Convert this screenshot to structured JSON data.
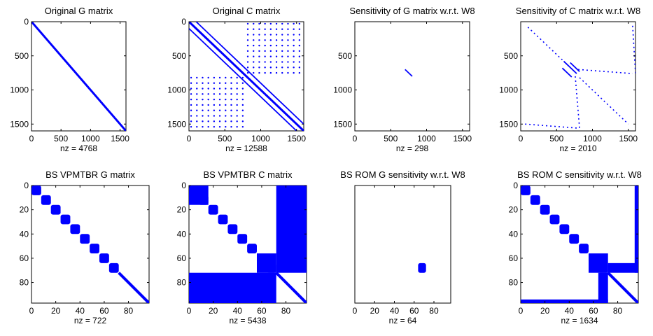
{
  "figure": {
    "mark_color": "#0000ff"
  },
  "chart_data": [
    {
      "type": "scatter",
      "subtype": "sparsity-pattern",
      "title": "Original G matrix",
      "xlabel": "nz = 4768",
      "xlim": [
        0,
        1600
      ],
      "ylim": [
        1600,
        0
      ],
      "y_reversed": true,
      "xticks": [
        0,
        500,
        1000,
        1500
      ],
      "yticks": [
        0,
        500,
        1000,
        1500
      ],
      "segments": [
        {
          "from": [
            0,
            0
          ],
          "to": [
            1600,
            1600
          ],
          "weight": "heavy"
        }
      ],
      "points": []
    },
    {
      "type": "scatter",
      "subtype": "sparsity-pattern",
      "title": "Original C matrix",
      "xlabel": "nz = 12588",
      "xlim": [
        0,
        1600
      ],
      "ylim": [
        1600,
        0
      ],
      "y_reversed": true,
      "xticks": [
        0,
        500,
        1000,
        1500
      ],
      "yticks": [
        0,
        500,
        1000,
        1500
      ],
      "segments": [
        {
          "from": [
            0,
            0
          ],
          "to": [
            1600,
            1600
          ],
          "weight": "heavy"
        },
        {
          "from": [
            100,
            0
          ],
          "to": [
            1600,
            1500
          ],
          "weight": "medium"
        },
        {
          "from": [
            0,
            100
          ],
          "to": [
            1500,
            1600
          ],
          "weight": "medium"
        }
      ],
      "point_grids": [
        {
          "x": [
            820,
            900,
            980,
            1060,
            1140,
            1220,
            1300,
            1380,
            1460,
            1540
          ],
          "y": [
            30,
            110,
            190,
            270,
            350,
            430,
            510,
            590,
            670,
            750
          ]
        },
        {
          "x": [
            30,
            110,
            190,
            270,
            350,
            430,
            510,
            590,
            670,
            750
          ],
          "y": [
            820,
            900,
            980,
            1060,
            1140,
            1220,
            1300,
            1380,
            1460,
            1540
          ]
        }
      ],
      "points": []
    },
    {
      "type": "scatter",
      "subtype": "sparsity-pattern",
      "title": "Sensitivity of G matrix w.r.t. W8",
      "xlabel": "nz = 298",
      "xlim": [
        0,
        1600
      ],
      "ylim": [
        1600,
        0
      ],
      "y_reversed": true,
      "xticks": [
        0,
        500,
        1000,
        1500
      ],
      "yticks": [
        500,
        1000,
        1500
      ],
      "segments": [
        {
          "from": [
            700,
            700
          ],
          "to": [
            800,
            800
          ],
          "weight": "medium"
        }
      ],
      "points": []
    },
    {
      "type": "scatter",
      "subtype": "sparsity-pattern",
      "title": "Sensitivity of C matrix w.r.t. W8",
      "xlabel": "nz = 2010",
      "xlim": [
        0,
        1600
      ],
      "ylim": [
        1600,
        0
      ],
      "y_reversed": true,
      "xticks": [
        0,
        500,
        1000,
        1500
      ],
      "yticks": [
        500,
        1000,
        1500
      ],
      "segments": [
        {
          "from": [
            600,
            580
          ],
          "to": [
            780,
            760
          ],
          "weight": "medium"
        },
        {
          "from": [
            690,
            600
          ],
          "to": [
            820,
            730
          ],
          "weight": "medium"
        },
        {
          "from": [
            580,
            680
          ],
          "to": [
            710,
            810
          ],
          "weight": "medium"
        },
        {
          "from": [
            100,
            80
          ],
          "to": [
            580,
            560
          ],
          "weight": "dotted"
        },
        {
          "from": [
            820,
            820
          ],
          "to": [
            1500,
            1500
          ],
          "weight": "dotted"
        },
        {
          "from": [
            800,
            700
          ],
          "to": [
            1560,
            760
          ],
          "weight": "dotted"
        },
        {
          "from": [
            760,
            800
          ],
          "to": [
            820,
            1560
          ],
          "weight": "dotted"
        },
        {
          "from": [
            60,
            1500
          ],
          "to": [
            800,
            1560
          ],
          "weight": "dotted"
        },
        {
          "from": [
            1560,
            60
          ],
          "to": [
            1600,
            760
          ],
          "weight": "dotted"
        }
      ],
      "points": []
    },
    {
      "type": "scatter",
      "subtype": "sparsity-pattern",
      "title": "BS VPMTBR G matrix",
      "xlabel": "nz = 722",
      "xlim": [
        0,
        97
      ],
      "ylim": [
        97,
        0
      ],
      "y_reversed": true,
      "xticks": [
        0,
        20,
        40,
        60,
        80
      ],
      "yticks": [
        0,
        20,
        40,
        60,
        80
      ],
      "blocks": [
        [
          0,
          8
        ],
        [
          8,
          16
        ],
        [
          16,
          24
        ],
        [
          24,
          32
        ],
        [
          32,
          40
        ],
        [
          40,
          48
        ],
        [
          48,
          56
        ],
        [
          56,
          64
        ],
        [
          64,
          72
        ]
      ],
      "segments": [
        {
          "from": [
            72,
            72
          ],
          "to": [
            97,
            97
          ],
          "weight": "band"
        }
      ],
      "points": []
    },
    {
      "type": "scatter",
      "subtype": "sparsity-pattern",
      "title": "BS VPMTBR C matrix",
      "xlabel": "nz = 5438",
      "xlim": [
        0,
        97
      ],
      "ylim": [
        97,
        0
      ],
      "y_reversed": true,
      "xticks": [
        0,
        20,
        40,
        60,
        80
      ],
      "yticks": [
        0,
        20,
        40,
        60,
        80
      ],
      "blocks": [
        [
          0,
          8
        ],
        [
          8,
          16
        ],
        [
          16,
          24
        ],
        [
          24,
          32
        ],
        [
          32,
          40
        ],
        [
          40,
          48
        ],
        [
          48,
          56
        ],
        [
          56,
          64
        ],
        [
          64,
          72
        ]
      ],
      "dense_regions": [
        {
          "x": [
            0,
            16
          ],
          "y": [
            0,
            16
          ]
        },
        {
          "x": [
            72,
            97
          ],
          "y": [
            0,
            72
          ]
        },
        {
          "x": [
            0,
            72
          ],
          "y": [
            72,
            97
          ]
        },
        {
          "x": [
            56,
            72
          ],
          "y": [
            56,
            72
          ]
        }
      ],
      "segments": [
        {
          "from": [
            72,
            72
          ],
          "to": [
            97,
            97
          ],
          "weight": "band"
        }
      ],
      "points": []
    },
    {
      "type": "scatter",
      "subtype": "sparsity-pattern",
      "title": "BS ROM G sensitivity w.r.t. W8",
      "xlabel": "nz = 64",
      "xlim": [
        0,
        97
      ],
      "ylim": [
        97,
        0
      ],
      "y_reversed": true,
      "xticks": [
        0,
        20,
        40,
        60,
        80
      ],
      "yticks": [],
      "blocks": [
        [
          64,
          72
        ]
      ],
      "segments": [],
      "points": []
    },
    {
      "type": "scatter",
      "subtype": "sparsity-pattern",
      "title": "BS ROM C sensitivity w.r.t. W8",
      "xlabel": "nz = 1634",
      "xlim": [
        0,
        97
      ],
      "ylim": [
        97,
        0
      ],
      "y_reversed": true,
      "xticks": [
        0,
        20,
        40,
        60,
        80
      ],
      "yticks": [
        0,
        20,
        40,
        60,
        80
      ],
      "blocks": [
        [
          0,
          8
        ],
        [
          8,
          16
        ],
        [
          16,
          24
        ],
        [
          24,
          32
        ],
        [
          32,
          40
        ],
        [
          40,
          48
        ],
        [
          48,
          56
        ],
        [
          56,
          64
        ],
        [
          64,
          72
        ]
      ],
      "dense_regions": [
        {
          "x": [
            56,
            72
          ],
          "y": [
            56,
            72
          ]
        },
        {
          "x": [
            72,
            97
          ],
          "y": [
            64,
            72
          ]
        },
        {
          "x": [
            64,
            72
          ],
          "y": [
            72,
            97
          ]
        },
        {
          "x": [
            94,
            97
          ],
          "y": [
            0,
            72
          ]
        },
        {
          "x": [
            0,
            72
          ],
          "y": [
            94,
            97
          ]
        }
      ],
      "segments": [
        {
          "from": [
            72,
            72
          ],
          "to": [
            97,
            97
          ],
          "weight": "band"
        }
      ],
      "points": []
    }
  ]
}
